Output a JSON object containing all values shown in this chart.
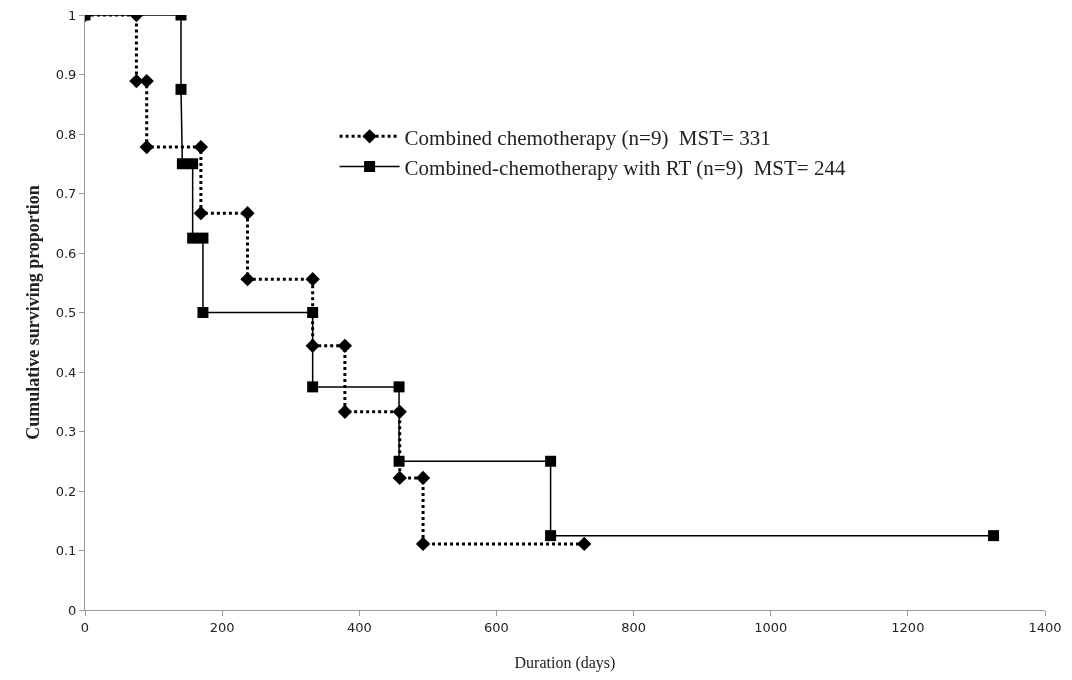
{
  "chart_data": {
    "type": "line",
    "xlabel": "Duration (days)",
    "ylabel": "Cumulative surviving proportion",
    "series": [
      {
        "name": "Combined chemotherapy (n=9)  MST= 331",
        "color": "#000000",
        "marker": "diamond",
        "line_style": "dotted",
        "x": [
          0,
          75,
          75,
          90,
          90,
          169,
          169,
          237,
          237,
          332,
          332,
          379,
          379,
          459,
          459,
          493,
          493,
          728
        ],
        "values": [
          1,
          1,
          0.889,
          0.889,
          0.778,
          0.778,
          0.667,
          0.667,
          0.556,
          0.556,
          0.444,
          0.444,
          0.333,
          0.333,
          0.222,
          0.222,
          0.111,
          0.111
        ]
      },
      {
        "name": "Combined-chemotherapy with RT (n=9)  MST= 244",
        "color": "#000000",
        "marker": "square",
        "line_style": "solid",
        "x": [
          0,
          140,
          140,
          142,
          157,
          157,
          172,
          172,
          332,
          332,
          458,
          458,
          679,
          679,
          1325
        ],
        "values": [
          1,
          1,
          0.875,
          0.75,
          0.75,
          0.625,
          0.625,
          0.5,
          0.5,
          0.375,
          0.375,
          0.25,
          0.25,
          0.125,
          0.125
        ]
      }
    ],
    "xlim": [
      0,
      1400
    ],
    "xticks": [
      0,
      200,
      400,
      600,
      800,
      1000,
      1200,
      1400
    ],
    "ylim": [
      0,
      1
    ],
    "yticks": [
      0,
      0.1,
      0.2,
      0.3,
      0.4,
      0.5,
      0.6,
      0.7,
      0.8,
      0.9,
      1
    ],
    "grid": false,
    "legend": "top right"
  }
}
